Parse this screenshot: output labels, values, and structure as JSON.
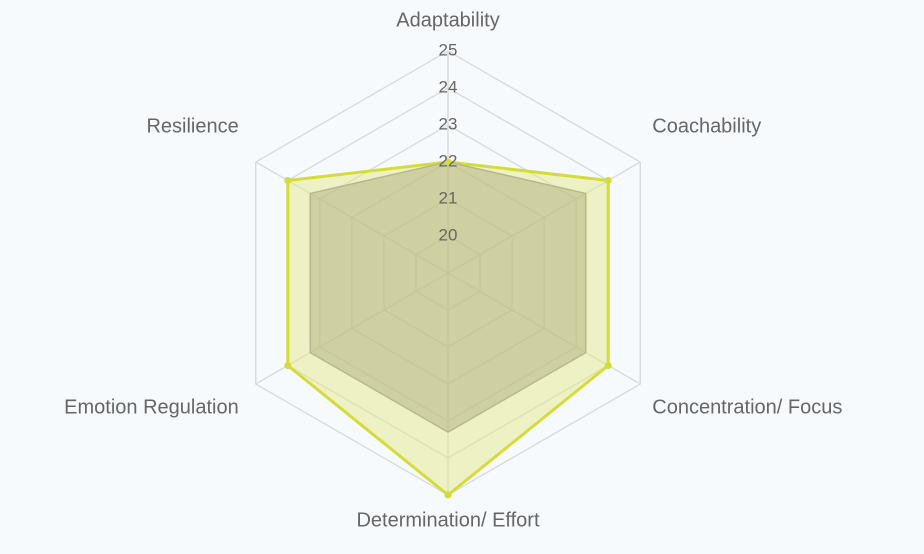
{
  "chart_data": {
    "type": "radar",
    "axes": [
      "Adaptability",
      "Coachability",
      "Concentration/ Focus",
      "Determination/ Effort",
      "Emotion Regulation",
      "Resilience"
    ],
    "r_min": 19,
    "r_max": 25,
    "ticks": [
      20,
      21,
      22,
      23,
      24,
      25
    ],
    "tick_labels": [
      "20",
      "21",
      "22",
      "23",
      "24",
      "25"
    ],
    "grid": true,
    "legend": "none",
    "series": [
      {
        "values": [
          22,
          24,
          24,
          25,
          24,
          24
        ],
        "fill": "#e5e88a",
        "fill_opacity": 0.5,
        "stroke": "#d4dc3c"
      },
      {
        "values": [
          22,
          23.3,
          23.3,
          23.3,
          23.3,
          23.3
        ],
        "fill": "#a8a878",
        "fill_opacity": 0.45,
        "stroke": "#b8b890"
      }
    ]
  }
}
